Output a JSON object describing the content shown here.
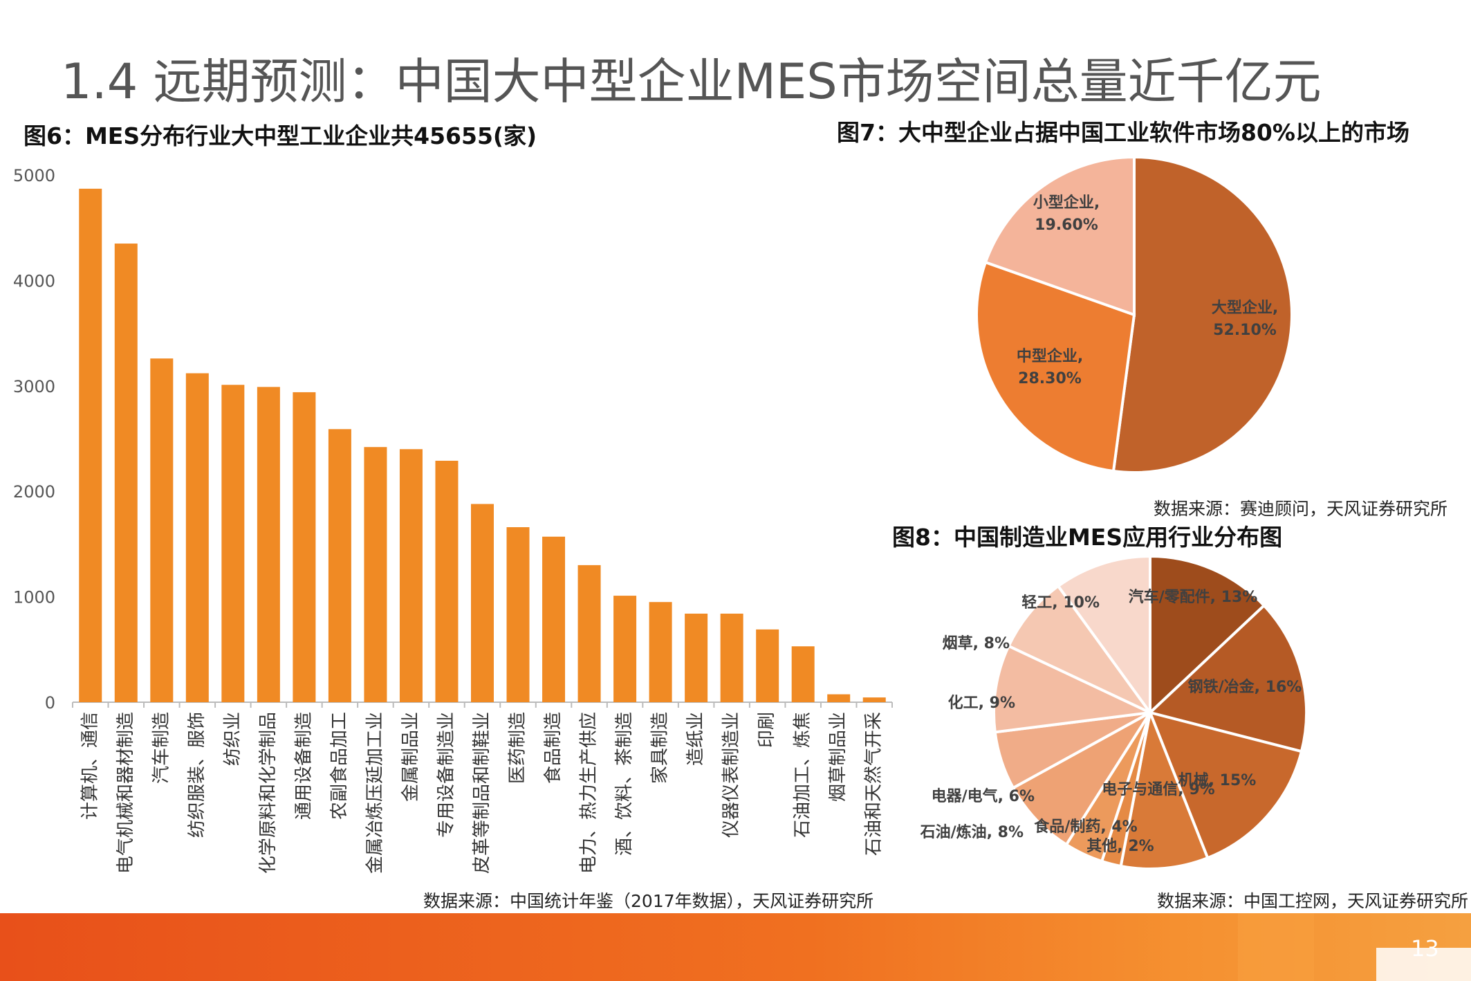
{
  "slide": {
    "title": "1.4 远期预测：中国大中型企业MES市场空间总量近千亿元",
    "page_number": "13"
  },
  "fig6": {
    "title": "图6：MES分布行业大中型工业企业共45655(家)",
    "source": "数据来源：中国统计年鉴（2017年数据），天风证券研究所"
  },
  "fig7": {
    "title": "图7：大中型企业占据中国工业软件市场80%以上的市场",
    "source": "数据来源：赛迪顾问，天风证券研究所"
  },
  "fig8": {
    "title": "图8：中国制造业MES应用行业分布图",
    "source": "数据来源：中国工控网，天风证券研究所"
  },
  "colors": {
    "bar": "#f08a24",
    "footer": "#e8501a"
  },
  "chart_data": [
    {
      "type": "bar",
      "title": "图6：MES分布行业大中型工业企业共45655(家)",
      "categories": [
        "计算机、通信",
        "电气机械和器材制造",
        "汽车制造",
        "纺织服装、服饰",
        "纺织业",
        "化学原料和化学制品",
        "通用设备制造",
        "农副食品加工",
        "金属冶炼压延加工业",
        "金属制品业",
        "专用设备制造业",
        "皮革等制品和制鞋业",
        "医药制造",
        "食品制造",
        "电力、热力生产供应",
        "酒、饮料、茶制造",
        "家具制造",
        "造纸业",
        "仪器仪表制造业",
        "印刷",
        "石油加工、炼焦",
        "烟草制品业",
        "石油和天然气开采"
      ],
      "values": [
        4870,
        4350,
        3260,
        3120,
        3010,
        2990,
        2940,
        2590,
        2420,
        2400,
        2290,
        1880,
        1660,
        1570,
        1300,
        1010,
        950,
        840,
        840,
        690,
        530,
        75,
        45
      ],
      "yticks": [
        "0",
        "1000",
        "2000",
        "3000",
        "4000",
        "5000"
      ],
      "ylim": [
        0,
        5000
      ],
      "grid": false
    },
    {
      "type": "pie",
      "title": "图7：大中型企业占据中国工业软件市场80%以上的市场",
      "slices": [
        {
          "name": "大型企业",
          "value": 52.1,
          "label": "52.10%",
          "color": "#c0622a"
        },
        {
          "name": "中型企业",
          "value": 28.3,
          "label": "28.30%",
          "color": "#ed7d31"
        },
        {
          "name": "小型企业",
          "value": 19.6,
          "label": "19.60%",
          "color": "#f4b49a"
        }
      ]
    },
    {
      "type": "pie",
      "title": "图8：中国制造业MES应用行业分布图",
      "slices": [
        {
          "name": "汽车/零配件",
          "value": 13,
          "label": "13%",
          "color": "#9e4c1c"
        },
        {
          "name": "钢铁/冶金",
          "value": 16,
          "label": "16%",
          "color": "#b55a25"
        },
        {
          "name": "机械",
          "value": 15,
          "label": "15%",
          "color": "#c8682c"
        },
        {
          "name": "电子与通信",
          "value": 9,
          "label": "9%",
          "color": "#d97a38"
        },
        {
          "name": "其他",
          "value": 2,
          "label": "2%",
          "color": "#e58a45"
        },
        {
          "name": "食品/制药",
          "value": 4,
          "label": "4%",
          "color": "#ec9a5c"
        },
        {
          "name": "石油/炼油",
          "value": 8,
          "label": "8%",
          "color": "#eea274"
        },
        {
          "name": "电器/电气",
          "value": 6,
          "label": "6%",
          "color": "#f0ac88"
        },
        {
          "name": "化工",
          "value": 9,
          "label": "9%",
          "color": "#f3bca2"
        },
        {
          "name": "烟草",
          "value": 8,
          "label": "8%",
          "color": "#f5c8b2"
        },
        {
          "name": "轻工",
          "value": 10,
          "label": "10%",
          "color": "#f8d8cb"
        }
      ]
    }
  ]
}
